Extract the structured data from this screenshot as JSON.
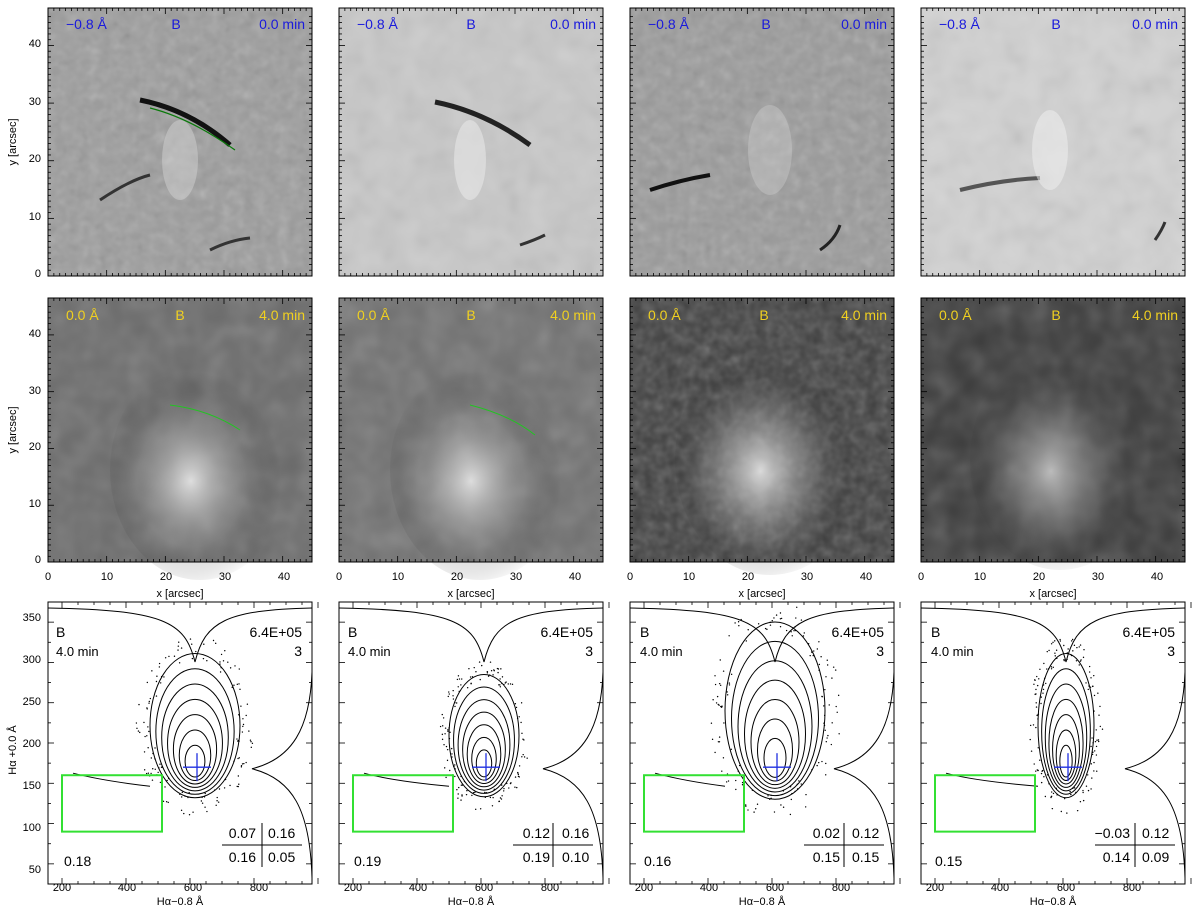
{
  "figure": {
    "colors": {
      "row1_label": "#1a1adc",
      "row2_label": "#f0d020",
      "contour_green": "#22c422",
      "box_green": "#33e033",
      "centroid_blue": "#2030e0"
    },
    "axes": {
      "image_xlabel": "x  [arcsec]",
      "image_ylabel": "y  [arcsec]",
      "image_ticks": [
        "0",
        "10",
        "20",
        "30",
        "40"
      ],
      "scatter_xlabel": "Hα−0.8 Å",
      "scatter_ylabel": "Hα +0.0 Å",
      "scatter_xticks": [
        "200",
        "400",
        "600",
        "800"
      ],
      "scatter_yticks": [
        "50",
        "100",
        "150",
        "200",
        "250",
        "300",
        "350"
      ]
    },
    "row1": {
      "wavelength": "−0.8 Å",
      "label": "B",
      "time": "0.0 min"
    },
    "row2": {
      "wavelength": "0.0 Å",
      "label": "B",
      "time": "4.0 min"
    },
    "row3": [
      {
        "label": "B",
        "time": "4.0 min",
        "count": "6.4E+05",
        "num": "3",
        "q_tl": "0.07",
        "q_tr": "0.16",
        "q_bl": "0.16",
        "q_br": "0.05",
        "frac": "0.18"
      },
      {
        "label": "B",
        "time": "4.0 min",
        "count": "6.4E+05",
        "num": "3",
        "q_tl": "0.12",
        "q_tr": "0.16",
        "q_bl": "0.19",
        "q_br": "0.10",
        "frac": "0.19"
      },
      {
        "label": "B",
        "time": "4.0 min",
        "count": "6.4E+05",
        "num": "3",
        "q_tl": "0.02",
        "q_tr": "0.12",
        "q_bl": "0.15",
        "q_br": "0.15",
        "frac": "0.16"
      },
      {
        "label": "B",
        "time": "4.0 min",
        "count": "6.4E+05",
        "num": "3",
        "q_tl": "−0.03",
        "q_tr": "0.12",
        "q_bl": "0.14",
        "q_br": "0.09",
        "frac": "0.15"
      }
    ]
  }
}
